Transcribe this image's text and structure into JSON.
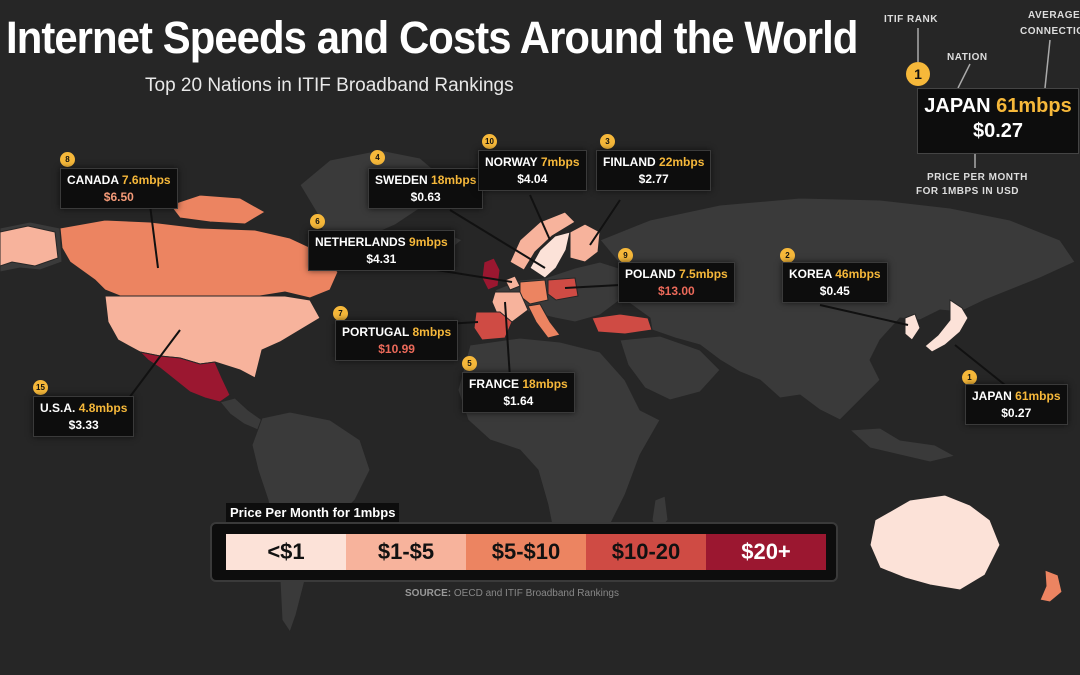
{
  "title": "Internet Speeds and Costs Around the World",
  "subtitle": "Top 20 Nations in ITIF Broadband Rankings",
  "colors": {
    "background": "#262626",
    "land": "#3a3a3a",
    "lt1": "#fce2d8",
    "b1_5": "#f7b39c",
    "b5_10": "#ec8461",
    "b10_20": "#cf4b44",
    "gt20": "#9b1730",
    "accent": "#f6b83a"
  },
  "key": {
    "rank_label": "ITIF RANK",
    "nation_label": "NATION",
    "connection_label_1": "AVERAGE",
    "connection_label_2": "CONNECTION",
    "price_label_1": "PRICE PER MONTH",
    "price_label_2": "FOR 1MBPS IN USD",
    "example": {
      "rank": "1",
      "nation": "JAPAN",
      "speed": "61mbps",
      "price": "$0.27"
    }
  },
  "countries": [
    {
      "id": "canada",
      "rank": "8",
      "nation": "CANADA",
      "speed": "7.6mbps",
      "price": "$6.50"
    },
    {
      "id": "sweden",
      "rank": "4",
      "nation": "SWEDEN",
      "speed": "18mbps",
      "price": "$0.63"
    },
    {
      "id": "norway",
      "rank": "10",
      "nation": "NORWAY",
      "speed": "7mbps",
      "price": "$4.04"
    },
    {
      "id": "finland",
      "rank": "3",
      "nation": "FINLAND",
      "speed": "22mbps",
      "price": "$2.77"
    },
    {
      "id": "netherlands",
      "rank": "6",
      "nation": "NETHERLANDS",
      "speed": "9mbps",
      "price": "$4.31"
    },
    {
      "id": "korea",
      "rank": "2",
      "nation": "KOREA",
      "speed": "46mbps",
      "price": "$0.45"
    },
    {
      "id": "poland",
      "rank": "9",
      "nation": "POLAND",
      "speed": "7.5mbps",
      "price": "$13.00"
    },
    {
      "id": "portugal",
      "rank": "7",
      "nation": "PORTUGAL",
      "speed": "8mbps",
      "price": "$10.99"
    },
    {
      "id": "france",
      "rank": "5",
      "nation": "FRANCE",
      "speed": "18mbps",
      "price": "$1.64"
    },
    {
      "id": "usa",
      "rank": "15",
      "nation": "U.S.A.",
      "speed": "4.8mbps",
      "price": "$3.33"
    },
    {
      "id": "japan",
      "rank": "1",
      "nation": "JAPAN",
      "speed": "61mbps",
      "price": "$0.27"
    }
  ],
  "legend": {
    "title": "Price Per Month for 1mbps",
    "items": [
      {
        "label": "<$1",
        "color": "#fce2d8",
        "text_color": "#111111"
      },
      {
        "label": "$1-$5",
        "color": "#f7b39c",
        "text_color": "#111111"
      },
      {
        "label": "$5-$10",
        "color": "#ec8461",
        "text_color": "#111111"
      },
      {
        "label": "$10-20",
        "color": "#cf4b44",
        "text_color": "#111111"
      },
      {
        "label": "$20+",
        "color": "#9b1730",
        "text_color": "#ffffff"
      }
    ]
  },
  "source": {
    "label": "SOURCE:",
    "text": "OECD and ITIF Broadband Rankings"
  }
}
